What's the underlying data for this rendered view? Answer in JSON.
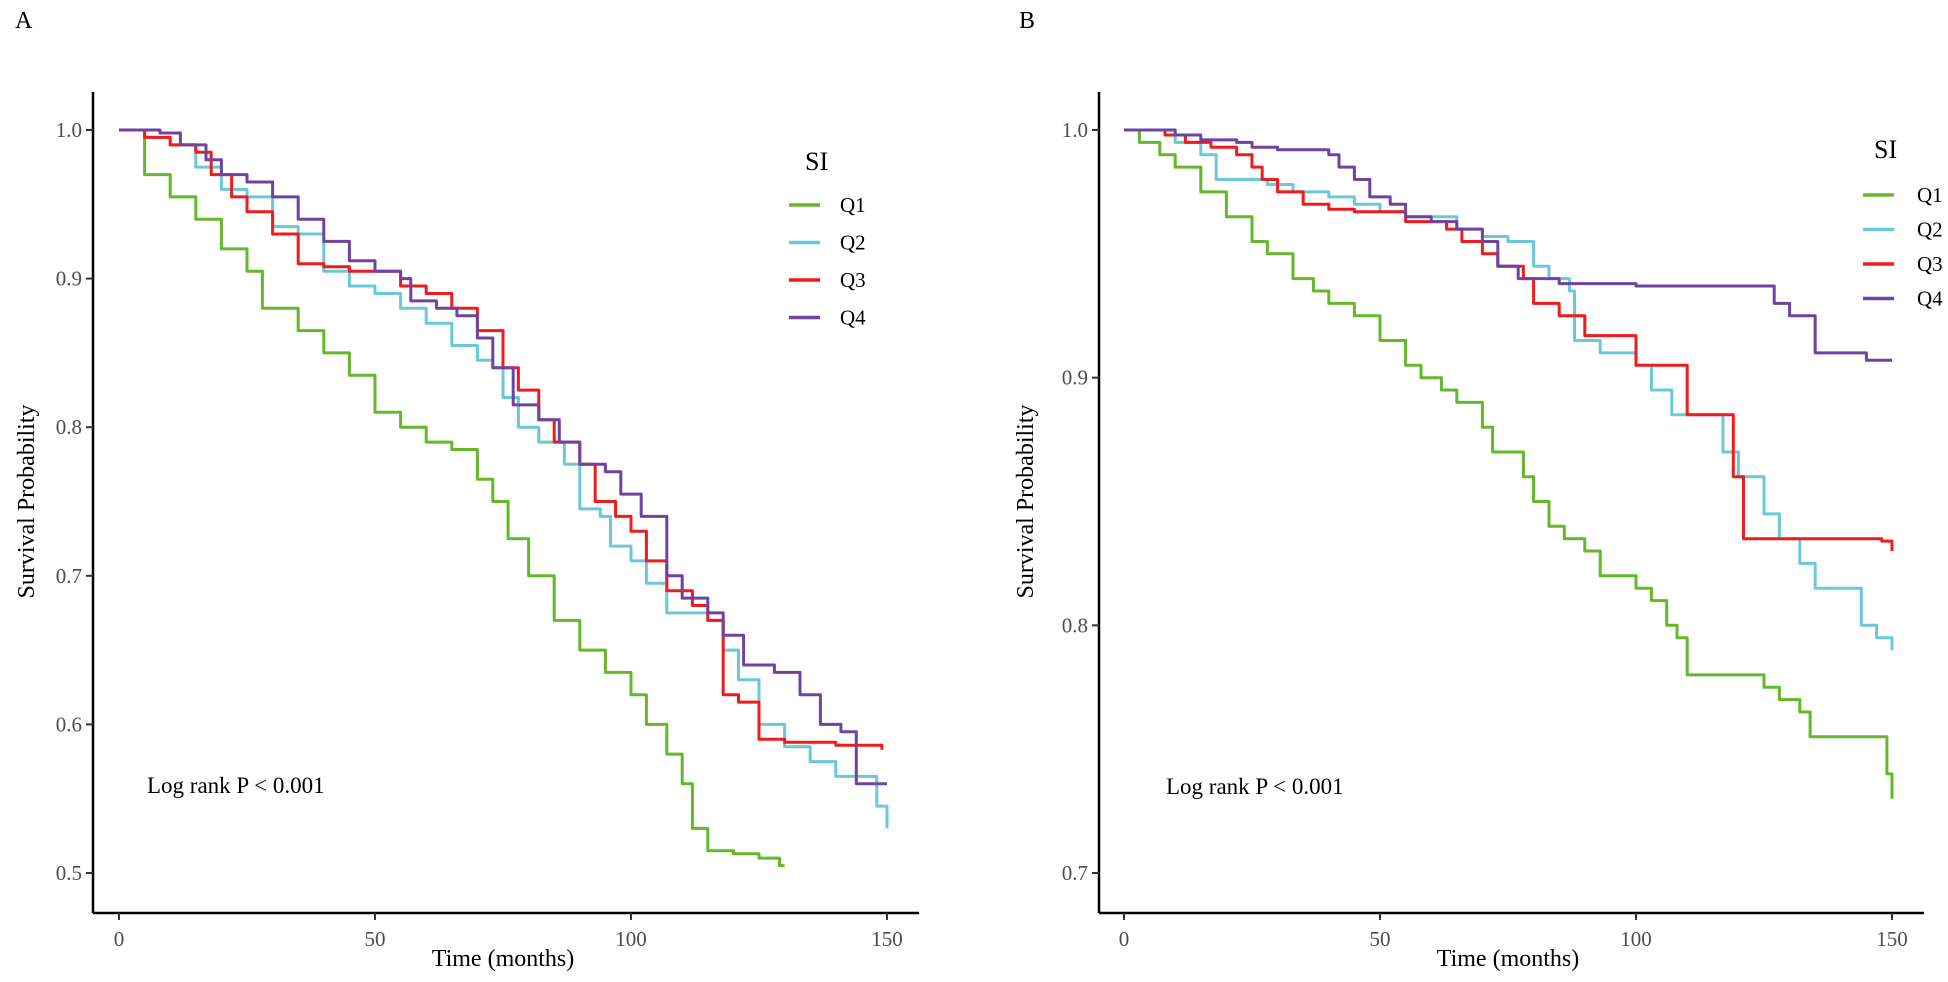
{
  "chart_data": [
    {
      "panel_label": "A",
      "type": "line",
      "subtype": "kaplan-meier step",
      "xlabel": "Time (months)",
      "ylabel": "Survival Probability",
      "xlim": [
        0,
        150
      ],
      "ylim": [
        0.5,
        1.0
      ],
      "xticks": [
        0,
        50,
        100,
        150
      ],
      "yticks": [
        0.5,
        0.6,
        0.7,
        0.8,
        0.9,
        1.0
      ],
      "ytick_labels": [
        "0.5",
        "0.6",
        "0.7",
        "0.8",
        "0.9",
        "1.0"
      ],
      "xtick_labels": [
        "0",
        "50",
        "100",
        "150"
      ],
      "legend": {
        "title": "SI",
        "placement": "top-right"
      },
      "annotation": "Log rank P < 0.001",
      "grid": false,
      "series": [
        {
          "name": "Q1",
          "color": "#66b72c",
          "points": [
            [
              0,
              1
            ],
            [
              5,
              0.97
            ],
            [
              10,
              0.955
            ],
            [
              15,
              0.94
            ],
            [
              20,
              0.92
            ],
            [
              25,
              0.905
            ],
            [
              28,
              0.88
            ],
            [
              35,
              0.865
            ],
            [
              40,
              0.85
            ],
            [
              45,
              0.835
            ],
            [
              50,
              0.81
            ],
            [
              55,
              0.8
            ],
            [
              60,
              0.79
            ],
            [
              65,
              0.785
            ],
            [
              70,
              0.765
            ],
            [
              73,
              0.75
            ],
            [
              76,
              0.725
            ],
            [
              80,
              0.7
            ],
            [
              85,
              0.67
            ],
            [
              90,
              0.65
            ],
            [
              95,
              0.635
            ],
            [
              100,
              0.62
            ],
            [
              103,
              0.6
            ],
            [
              107,
              0.58
            ],
            [
              110,
              0.56
            ],
            [
              112,
              0.53
            ],
            [
              115,
              0.515
            ],
            [
              120,
              0.513
            ],
            [
              125,
              0.51
            ],
            [
              129,
              0.505
            ],
            [
              130,
              0.505
            ]
          ]
        },
        {
          "name": "Q2",
          "color": "#6ac8d9",
          "points": [
            [
              0,
              1
            ],
            [
              5,
              0.995
            ],
            [
              10,
              0.99
            ],
            [
              15,
              0.975
            ],
            [
              20,
              0.96
            ],
            [
              25,
              0.955
            ],
            [
              30,
              0.935
            ],
            [
              35,
              0.93
            ],
            [
              40,
              0.905
            ],
            [
              45,
              0.895
            ],
            [
              50,
              0.89
            ],
            [
              55,
              0.88
            ],
            [
              60,
              0.87
            ],
            [
              65,
              0.855
            ],
            [
              70,
              0.845
            ],
            [
              73,
              0.84
            ],
            [
              75,
              0.82
            ],
            [
              78,
              0.8
            ],
            [
              82,
              0.79
            ],
            [
              87,
              0.775
            ],
            [
              90,
              0.745
            ],
            [
              94,
              0.74
            ],
            [
              96,
              0.72
            ],
            [
              100,
              0.71
            ],
            [
              103,
              0.695
            ],
            [
              107,
              0.675
            ],
            [
              115,
              0.67
            ],
            [
              118,
              0.65
            ],
            [
              121,
              0.63
            ],
            [
              125,
              0.6
            ],
            [
              130,
              0.585
            ],
            [
              135,
              0.575
            ],
            [
              140,
              0.565
            ],
            [
              145,
              0.565
            ],
            [
              148,
              0.545
            ],
            [
              150,
              0.53
            ]
          ]
        },
        {
          "name": "Q3",
          "color": "#ee1c1c",
          "points": [
            [
              0,
              1
            ],
            [
              5,
              0.995
            ],
            [
              10,
              0.99
            ],
            [
              15,
              0.985
            ],
            [
              18,
              0.97
            ],
            [
              22,
              0.955
            ],
            [
              25,
              0.945
            ],
            [
              30,
              0.93
            ],
            [
              35,
              0.91
            ],
            [
              40,
              0.908
            ],
            [
              45,
              0.905
            ],
            [
              50,
              0.905
            ],
            [
              55,
              0.895
            ],
            [
              60,
              0.89
            ],
            [
              65,
              0.88
            ],
            [
              70,
              0.865
            ],
            [
              75,
              0.84
            ],
            [
              78,
              0.825
            ],
            [
              82,
              0.805
            ],
            [
              85,
              0.79
            ],
            [
              90,
              0.775
            ],
            [
              93,
              0.75
            ],
            [
              97,
              0.74
            ],
            [
              100,
              0.73
            ],
            [
              103,
              0.71
            ],
            [
              107,
              0.69
            ],
            [
              112,
              0.68
            ],
            [
              115,
              0.67
            ],
            [
              118,
              0.62
            ],
            [
              121,
              0.615
            ],
            [
              125,
              0.59
            ],
            [
              130,
              0.588
            ],
            [
              140,
              0.586
            ],
            [
              149,
              0.583
            ]
          ]
        },
        {
          "name": "Q4",
          "color": "#6f44a1",
          "points": [
            [
              0,
              1
            ],
            [
              8,
              0.998
            ],
            [
              12,
              0.99
            ],
            [
              17,
              0.98
            ],
            [
              20,
              0.97
            ],
            [
              25,
              0.965
            ],
            [
              30,
              0.955
            ],
            [
              35,
              0.94
            ],
            [
              40,
              0.925
            ],
            [
              45,
              0.912
            ],
            [
              50,
              0.905
            ],
            [
              55,
              0.9
            ],
            [
              57,
              0.885
            ],
            [
              62,
              0.88
            ],
            [
              66,
              0.875
            ],
            [
              70,
              0.86
            ],
            [
              73,
              0.84
            ],
            [
              77,
              0.815
            ],
            [
              82,
              0.805
            ],
            [
              86,
              0.79
            ],
            [
              90,
              0.775
            ],
            [
              95,
              0.77
            ],
            [
              98,
              0.755
            ],
            [
              102,
              0.74
            ],
            [
              107,
              0.7
            ],
            [
              110,
              0.685
            ],
            [
              115,
              0.675
            ],
            [
              118,
              0.66
            ],
            [
              122,
              0.64
            ],
            [
              128,
              0.635
            ],
            [
              133,
              0.62
            ],
            [
              137,
              0.6
            ],
            [
              141,
              0.595
            ],
            [
              144,
              0.56
            ],
            [
              150,
              0.56
            ]
          ]
        }
      ]
    },
    {
      "panel_label": "B",
      "type": "line",
      "subtype": "kaplan-meier step",
      "xlabel": "Time (months)",
      "ylabel": "Survival Probability",
      "xlim": [
        0,
        150
      ],
      "ylim": [
        0.7,
        1.0
      ],
      "xticks": [
        0,
        50,
        100,
        150
      ],
      "yticks": [
        0.7,
        0.8,
        0.9,
        1.0
      ],
      "ytick_labels": [
        "0.7",
        "0.8",
        "0.9",
        "1.0"
      ],
      "xtick_labels": [
        "0",
        "50",
        "100",
        "150"
      ],
      "legend": {
        "title": "SI",
        "placement": "top-right"
      },
      "annotation": "Log rank P < 0.001",
      "grid": false,
      "series": [
        {
          "name": "Q1",
          "color": "#66b72c",
          "points": [
            [
              0,
              1
            ],
            [
              3,
              0.995
            ],
            [
              7,
              0.99
            ],
            [
              10,
              0.985
            ],
            [
              15,
              0.975
            ],
            [
              20,
              0.965
            ],
            [
              25,
              0.955
            ],
            [
              28,
              0.95
            ],
            [
              33,
              0.94
            ],
            [
              37,
              0.935
            ],
            [
              40,
              0.93
            ],
            [
              45,
              0.925
            ],
            [
              50,
              0.915
            ],
            [
              55,
              0.905
            ],
            [
              58,
              0.9
            ],
            [
              62,
              0.895
            ],
            [
              65,
              0.89
            ],
            [
              70,
              0.88
            ],
            [
              72,
              0.87
            ],
            [
              78,
              0.86
            ],
            [
              80,
              0.85
            ],
            [
              83,
              0.84
            ],
            [
              86,
              0.835
            ],
            [
              90,
              0.83
            ],
            [
              93,
              0.82
            ],
            [
              100,
              0.815
            ],
            [
              103,
              0.81
            ],
            [
              106,
              0.8
            ],
            [
              108,
              0.795
            ],
            [
              110,
              0.78
            ],
            [
              122,
              0.78
            ],
            [
              125,
              0.775
            ],
            [
              128,
              0.77
            ],
            [
              132,
              0.765
            ],
            [
              134,
              0.755
            ],
            [
              148,
              0.755
            ],
            [
              149,
              0.74
            ],
            [
              150,
              0.73
            ]
          ]
        },
        {
          "name": "Q2",
          "color": "#6ac8d9",
          "points": [
            [
              0,
              1
            ],
            [
              10,
              0.995
            ],
            [
              15,
              0.99
            ],
            [
              18,
              0.98
            ],
            [
              28,
              0.978
            ],
            [
              33,
              0.975
            ],
            [
              40,
              0.973
            ],
            [
              45,
              0.97
            ],
            [
              50,
              0.967
            ],
            [
              55,
              0.965
            ],
            [
              65,
              0.96
            ],
            [
              70,
              0.957
            ],
            [
              75,
              0.955
            ],
            [
              80,
              0.945
            ],
            [
              83,
              0.94
            ],
            [
              87,
              0.935
            ],
            [
              88,
              0.915
            ],
            [
              93,
              0.91
            ],
            [
              100,
              0.905
            ],
            [
              103,
              0.895
            ],
            [
              107,
              0.885
            ],
            [
              115,
              0.885
            ],
            [
              117,
              0.87
            ],
            [
              120,
              0.86
            ],
            [
              125,
              0.845
            ],
            [
              128,
              0.835
            ],
            [
              132,
              0.825
            ],
            [
              135,
              0.815
            ],
            [
              142,
              0.815
            ],
            [
              144,
              0.8
            ],
            [
              147,
              0.795
            ],
            [
              150,
              0.79
            ]
          ]
        },
        {
          "name": "Q3",
          "color": "#ee1c1c",
          "points": [
            [
              0,
              1
            ],
            [
              8,
              0.998
            ],
            [
              12,
              0.995
            ],
            [
              17,
              0.993
            ],
            [
              22,
              0.99
            ],
            [
              25,
              0.985
            ],
            [
              27,
              0.98
            ],
            [
              30,
              0.975
            ],
            [
              35,
              0.97
            ],
            [
              40,
              0.968
            ],
            [
              45,
              0.967
            ],
            [
              55,
              0.963
            ],
            [
              63,
              0.96
            ],
            [
              66,
              0.955
            ],
            [
              70,
              0.95
            ],
            [
              73,
              0.945
            ],
            [
              78,
              0.94
            ],
            [
              80,
              0.93
            ],
            [
              85,
              0.925
            ],
            [
              90,
              0.917
            ],
            [
              97,
              0.917
            ],
            [
              100,
              0.905
            ],
            [
              108,
              0.905
            ],
            [
              110,
              0.885
            ],
            [
              117,
              0.885
            ],
            [
              119,
              0.86
            ],
            [
              121,
              0.835
            ],
            [
              130,
              0.835
            ],
            [
              148,
              0.834
            ],
            [
              150,
              0.83
            ]
          ]
        },
        {
          "name": "Q4",
          "color": "#6f44a1",
          "points": [
            [
              0,
              1
            ],
            [
              10,
              0.998
            ],
            [
              15,
              0.996
            ],
            [
              22,
              0.995
            ],
            [
              25,
              0.993
            ],
            [
              30,
              0.992
            ],
            [
              40,
              0.99
            ],
            [
              42,
              0.985
            ],
            [
              45,
              0.98
            ],
            [
              48,
              0.973
            ],
            [
              52,
              0.97
            ],
            [
              55,
              0.965
            ],
            [
              60,
              0.963
            ],
            [
              65,
              0.96
            ],
            [
              70,
              0.955
            ],
            [
              73,
              0.945
            ],
            [
              77,
              0.94
            ],
            [
              85,
              0.938
            ],
            [
              100,
              0.937
            ],
            [
              125,
              0.937
            ],
            [
              127,
              0.93
            ],
            [
              130,
              0.925
            ],
            [
              135,
              0.91
            ],
            [
              145,
              0.907
            ],
            [
              150,
              0.907
            ]
          ]
        }
      ]
    }
  ]
}
